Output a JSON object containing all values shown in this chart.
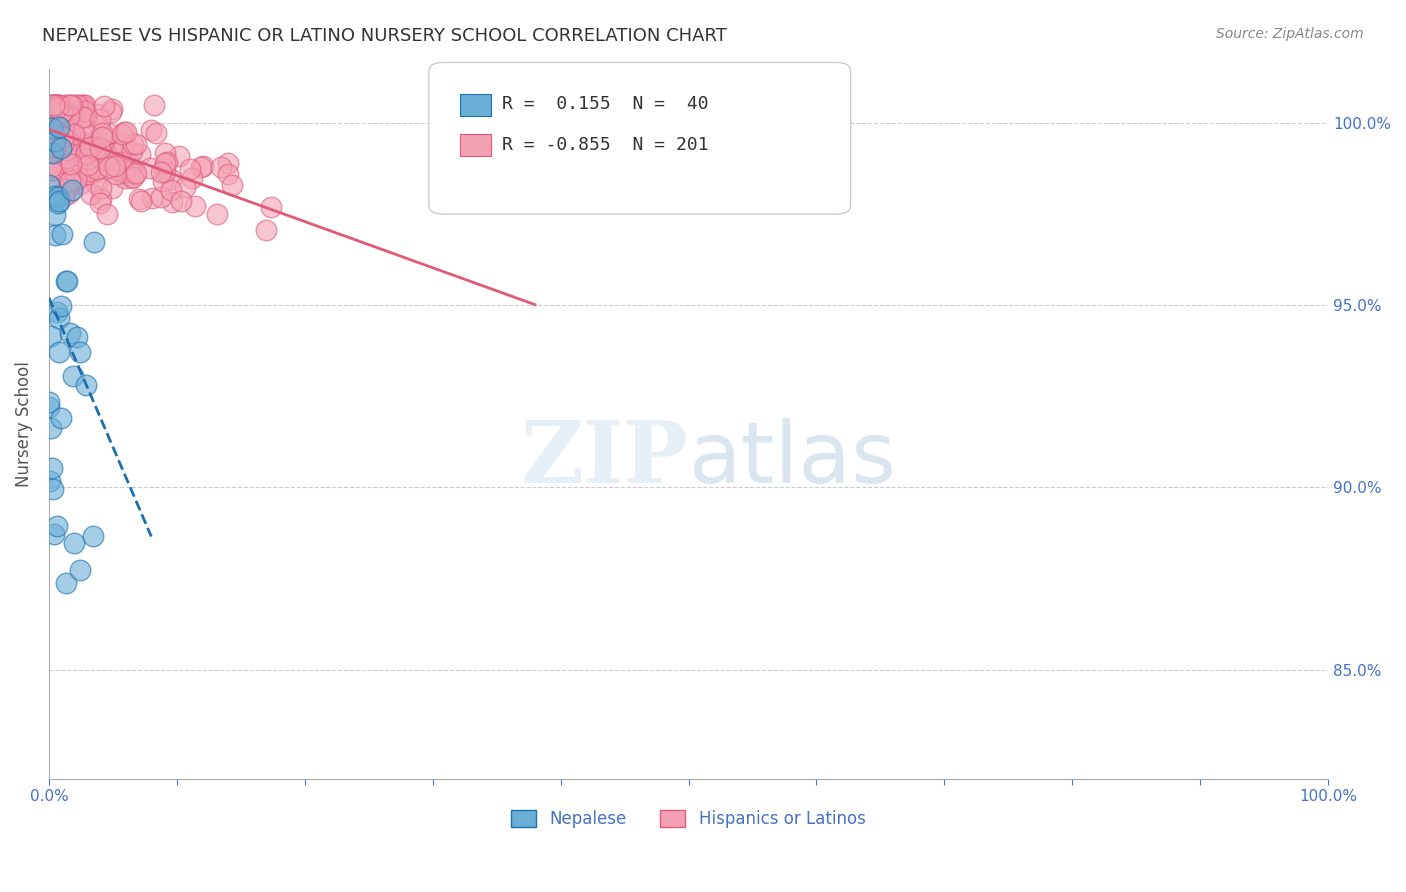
{
  "title": "NEPALESE VS HISPANIC OR LATINO NURSERY SCHOOL CORRELATION CHART",
  "source": "Source: ZipAtlas.com",
  "ylabel": "Nursery School",
  "ytick_labels": [
    "100.0%",
    "95.0%",
    "90.0%",
    "85.0%"
  ],
  "ytick_values": [
    1.0,
    0.95,
    0.9,
    0.85
  ],
  "xlim": [
    0.0,
    1.0
  ],
  "ylim": [
    0.82,
    1.015
  ],
  "legend_blue_R": "0.155",
  "legend_blue_N": "40",
  "legend_pink_R": "-0.855",
  "legend_pink_N": "201",
  "blue_color": "#6aaed6",
  "pink_color": "#f4a0b5",
  "blue_line_color": "#1a6faf",
  "pink_line_color": "#e05a7a",
  "title_color": "#333333",
  "source_color": "#888888",
  "axis_label_color": "#555555",
  "tick_label_color": "#4472c4",
  "grid_color": "#cccccc",
  "background_color": "#ffffff"
}
